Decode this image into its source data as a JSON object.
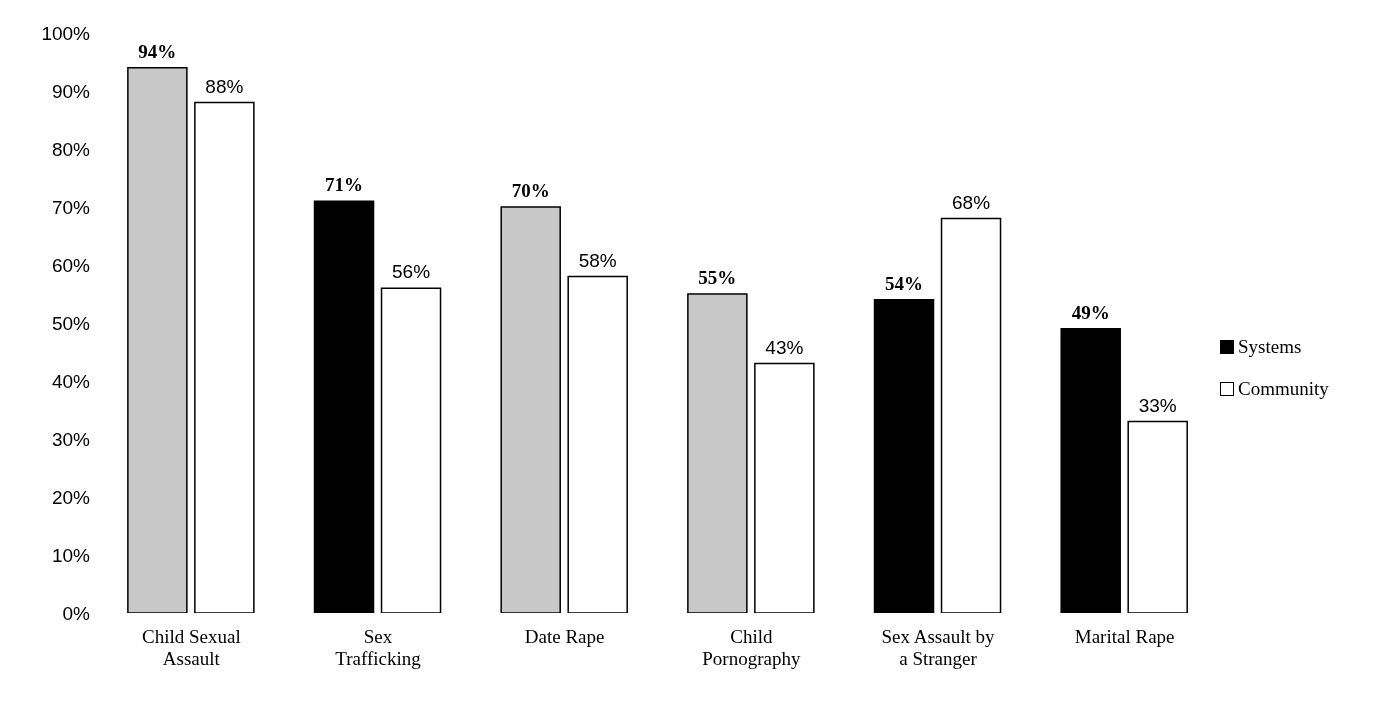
{
  "chart_data": {
    "type": "bar",
    "categories": [
      "Child Sexual Assault",
      "Sex Trafficking",
      "Date Rape",
      "Child Pornography",
      "Sex Assault by a Stranger",
      "Marital Rape"
    ],
    "series": [
      {
        "name": "Systems",
        "color": "#000000",
        "colors": [
          "#c8c8c8",
          "#000000",
          "#c8c8c8",
          "#c8c8c8",
          "#000000",
          "#000000"
        ],
        "values": [
          94,
          71,
          70,
          55,
          54,
          49
        ],
        "value_labels": [
          "94%",
          "71%",
          "70%",
          "55%",
          "54%",
          "49%"
        ]
      },
      {
        "name": "Community",
        "color": "#ffffff",
        "values": [
          88,
          56,
          58,
          43,
          68,
          33
        ],
        "value_labels": [
          "88%",
          "56%",
          "58%",
          "43%",
          "68%",
          "33%"
        ]
      }
    ],
    "ylim": [
      0,
      100
    ],
    "yticks": [
      {
        "value": 0,
        "label": "0%"
      },
      {
        "value": 10,
        "label": "10%"
      },
      {
        "value": 20,
        "label": "20%"
      },
      {
        "value": 30,
        "label": "30%"
      },
      {
        "value": 40,
        "label": "40%"
      },
      {
        "value": 50,
        "label": "50%"
      },
      {
        "value": 60,
        "label": "60%"
      },
      {
        "value": 70,
        "label": "70%"
      },
      {
        "value": 80,
        "label": "80%"
      },
      {
        "value": 90,
        "label": "90%"
      },
      {
        "value": 100,
        "label": "100%"
      }
    ],
    "grid": false,
    "legend": "right"
  }
}
